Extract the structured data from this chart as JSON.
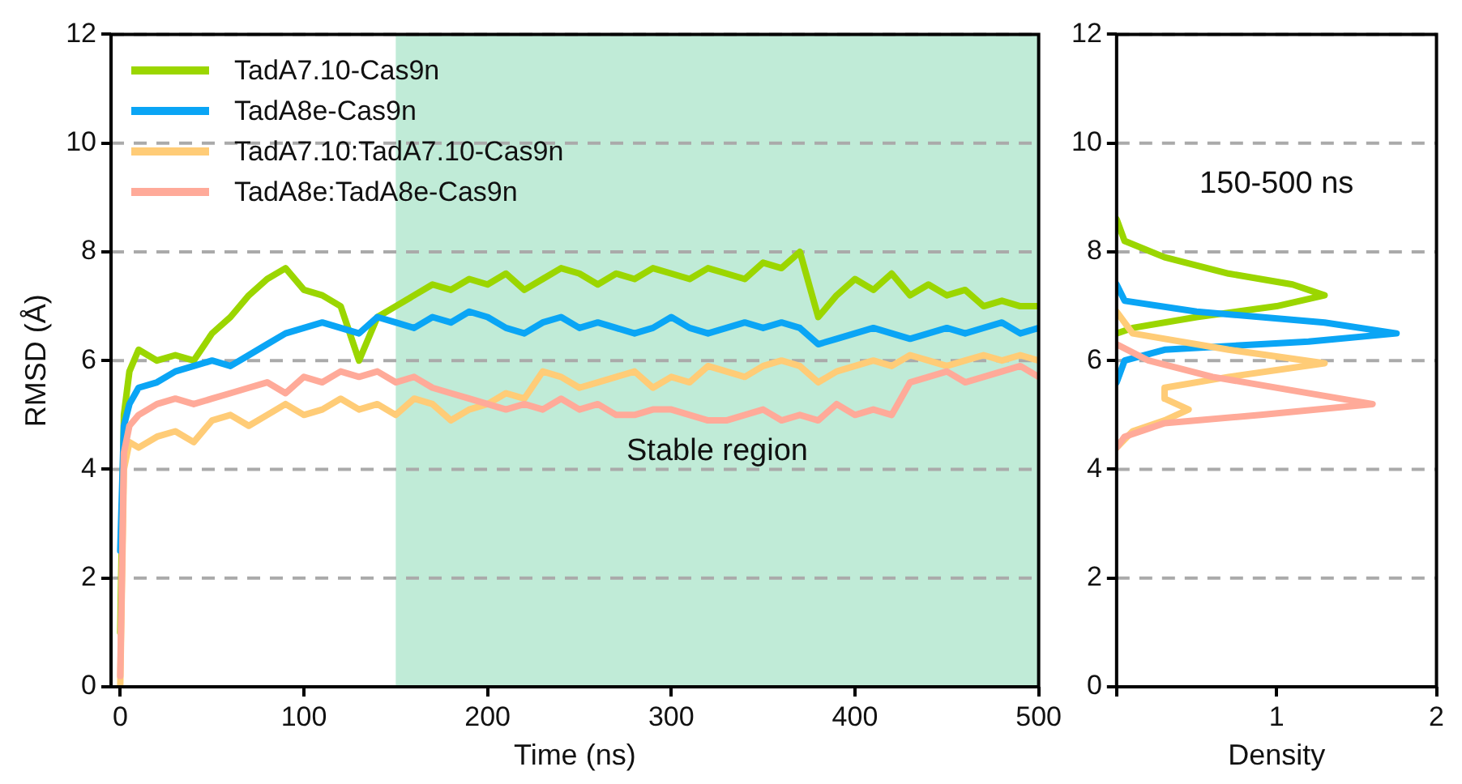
{
  "chart_data": [
    {
      "type": "line",
      "xlabel": "Time (ns)",
      "ylabel": "RMSD (Å)",
      "xlim": [
        -5,
        500
      ],
      "xticks": [
        0,
        100,
        200,
        300,
        400,
        500
      ],
      "ylim": [
        0,
        12
      ],
      "yticks": [
        0,
        2,
        4,
        6,
        8,
        10,
        12
      ],
      "grid": "y",
      "legend": "top left",
      "bands": [
        {
          "axis": "x",
          "from": 150,
          "to": 500,
          "color": "#c0ebd7"
        }
      ],
      "annotations": [
        "Stable region"
      ],
      "x": [
        0,
        2,
        5,
        10,
        20,
        30,
        40,
        50,
        60,
        70,
        80,
        90,
        100,
        110,
        120,
        130,
        140,
        150,
        160,
        170,
        180,
        190,
        200,
        210,
        220,
        230,
        240,
        250,
        260,
        270,
        280,
        290,
        300,
        310,
        320,
        330,
        340,
        350,
        360,
        370,
        380,
        390,
        400,
        410,
        420,
        430,
        440,
        450,
        460,
        470,
        480,
        490,
        500
      ],
      "series": [
        {
          "name": "TadA7.10-Cas9n",
          "color": "#9bd600",
          "values": [
            1,
            5.0,
            5.8,
            6.2,
            6.0,
            6.1,
            6.0,
            6.5,
            6.8,
            7.2,
            7.5,
            7.7,
            7.3,
            7.2,
            7.0,
            6.0,
            6.8,
            7.0,
            7.2,
            7.4,
            7.3,
            7.5,
            7.4,
            7.6,
            7.3,
            7.5,
            7.7,
            7.6,
            7.4,
            7.6,
            7.5,
            7.7,
            7.6,
            7.5,
            7.7,
            7.6,
            7.5,
            7.8,
            7.7,
            8.0,
            6.8,
            7.2,
            7.5,
            7.3,
            7.6,
            7.2,
            7.4,
            7.2,
            7.3,
            7.0,
            7.1,
            7.0,
            7.0
          ]
        },
        {
          "name": "TadA8e-Cas9n",
          "color": "#0aa5f5",
          "values": [
            2.5,
            4.8,
            5.2,
            5.5,
            5.6,
            5.8,
            5.9,
            6.0,
            5.9,
            6.1,
            6.3,
            6.5,
            6.6,
            6.7,
            6.6,
            6.5,
            6.8,
            6.7,
            6.6,
            6.8,
            6.7,
            6.9,
            6.8,
            6.6,
            6.5,
            6.7,
            6.8,
            6.6,
            6.7,
            6.6,
            6.5,
            6.6,
            6.8,
            6.6,
            6.5,
            6.6,
            6.7,
            6.6,
            6.7,
            6.6,
            6.3,
            6.4,
            6.5,
            6.6,
            6.5,
            6.4,
            6.5,
            6.6,
            6.5,
            6.6,
            6.7,
            6.5,
            6.6
          ]
        },
        {
          "name": "TadA7.10:TadA7.10-Cas9n",
          "color": "#ffcc77",
          "values": [
            0,
            4.0,
            4.5,
            4.4,
            4.6,
            4.7,
            4.5,
            4.9,
            5.0,
            4.8,
            5.0,
            5.2,
            5.0,
            5.1,
            5.3,
            5.1,
            5.2,
            5.0,
            5.3,
            5.2,
            4.9,
            5.1,
            5.2,
            5.4,
            5.3,
            5.8,
            5.7,
            5.5,
            5.6,
            5.7,
            5.8,
            5.5,
            5.7,
            5.6,
            5.9,
            5.8,
            5.7,
            5.9,
            6.0,
            5.9,
            5.6,
            5.8,
            5.9,
            6.0,
            5.9,
            6.1,
            6.0,
            5.9,
            6.0,
            6.1,
            6.0,
            6.1,
            6.0
          ]
        },
        {
          "name": "TadA8e:TadA8e-Cas9n",
          "color": "#ffaa99",
          "values": [
            0.2,
            4.3,
            4.8,
            5.0,
            5.2,
            5.3,
            5.2,
            5.3,
            5.4,
            5.5,
            5.6,
            5.4,
            5.7,
            5.6,
            5.8,
            5.7,
            5.8,
            5.6,
            5.7,
            5.5,
            5.4,
            5.3,
            5.2,
            5.1,
            5.2,
            5.1,
            5.3,
            5.1,
            5.2,
            5.0,
            5.0,
            5.1,
            5.1,
            5.0,
            4.9,
            4.9,
            5.0,
            5.1,
            4.9,
            5.0,
            4.9,
            5.2,
            5.0,
            5.1,
            5.0,
            5.6,
            5.7,
            5.8,
            5.6,
            5.7,
            5.8,
            5.9,
            5.7
          ]
        }
      ]
    },
    {
      "type": "line",
      "xlabel": "Density",
      "xlim": [
        0,
        2
      ],
      "xticks": [
        {
          "value": 0,
          "label": null
        },
        1,
        2
      ],
      "ylim": [
        0,
        12
      ],
      "yticks": [
        0,
        2,
        4,
        6,
        8,
        10,
        12
      ],
      "grid": "y",
      "annotations": [
        "150-500 ns"
      ],
      "series": [
        {
          "color": "#9bd600",
          "x": [
            0,
            0.05,
            0.3,
            0.7,
            1.1,
            1.3,
            1.0,
            0.5,
            0.1,
            0
          ],
          "values": [
            8.6,
            8.2,
            7.9,
            7.6,
            7.4,
            7.2,
            7.0,
            6.8,
            6.6,
            6.5
          ]
        },
        {
          "color": "#0aa5f5",
          "x": [
            0,
            0.05,
            0.5,
            1.3,
            1.75,
            1.2,
            0.3,
            0.05,
            0
          ],
          "values": [
            7.4,
            7.1,
            6.9,
            6.7,
            6.5,
            6.35,
            6.2,
            6.0,
            5.6
          ]
        },
        {
          "color": "#ffcc77",
          "x": [
            0,
            0.1,
            0.7,
            1.3,
            0.7,
            0.3,
            0.3,
            0.45,
            0.3,
            0.1,
            0
          ],
          "values": [
            6.9,
            6.5,
            6.2,
            5.95,
            5.7,
            5.5,
            5.3,
            5.1,
            4.9,
            4.7,
            4.4
          ]
        },
        {
          "color": "#ffaa99",
          "x": [
            0,
            0.2,
            0.6,
            1.1,
            1.6,
            0.9,
            0.3,
            0.05,
            0
          ],
          "values": [
            6.3,
            6.0,
            5.7,
            5.45,
            5.2,
            5.0,
            4.85,
            4.6,
            4.4
          ]
        }
      ]
    }
  ]
}
